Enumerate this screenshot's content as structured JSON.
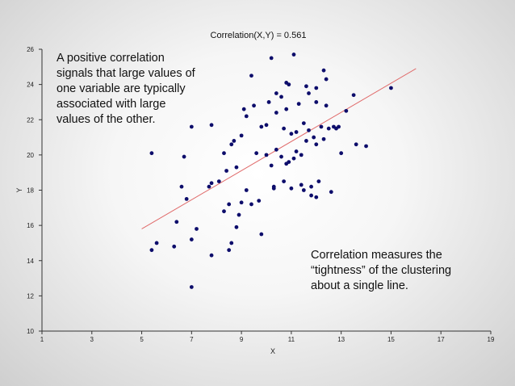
{
  "chart_data": {
    "type": "scatter",
    "title": "Correlation(X,Y) = 0.561",
    "xlabel": "X",
    "ylabel": "Y",
    "xlim": [
      1,
      19
    ],
    "ylim": [
      10,
      26
    ],
    "xticks": [
      "1",
      "3",
      "5",
      "7",
      "9",
      "11",
      "13",
      "15",
      "17",
      "19"
    ],
    "yticks": [
      "10",
      "12",
      "14",
      "16",
      "18",
      "20",
      "22",
      "24",
      "26"
    ],
    "point_color": "#0d0d6b",
    "fit_line_color": "#e06a6a",
    "fit_line": {
      "x": [
        5.0,
        16.0
      ],
      "y": [
        15.8,
        24.9
      ]
    },
    "points": [
      [
        5.4,
        14.6
      ],
      [
        5.6,
        15.0
      ],
      [
        5.4,
        20.1
      ],
      [
        6.3,
        14.8
      ],
      [
        6.4,
        16.2
      ],
      [
        6.6,
        18.2
      ],
      [
        6.7,
        19.9
      ],
      [
        6.8,
        17.5
      ],
      [
        7.0,
        15.2
      ],
      [
        7.0,
        21.6
      ],
      [
        7.2,
        15.8
      ],
      [
        7.0,
        12.5
      ],
      [
        7.7,
        18.2
      ],
      [
        7.8,
        18.4
      ],
      [
        7.8,
        21.7
      ],
      [
        7.8,
        14.3
      ],
      [
        8.1,
        18.5
      ],
      [
        8.3,
        16.8
      ],
      [
        8.3,
        20.1
      ],
      [
        8.4,
        19.1
      ],
      [
        8.5,
        17.2
      ],
      [
        8.5,
        14.6
      ],
      [
        8.6,
        20.6
      ],
      [
        8.6,
        15.0
      ],
      [
        8.7,
        20.8
      ],
      [
        8.8,
        15.9
      ],
      [
        8.8,
        19.3
      ],
      [
        8.9,
        16.6
      ],
      [
        9.0,
        17.3
      ],
      [
        9.0,
        21.1
      ],
      [
        9.1,
        22.6
      ],
      [
        9.2,
        18.0
      ],
      [
        9.4,
        17.2
      ],
      [
        9.4,
        24.5
      ],
      [
        9.5,
        22.8
      ],
      [
        9.6,
        20.1
      ],
      [
        9.7,
        17.4
      ],
      [
        9.8,
        15.5
      ],
      [
        9.8,
        21.6
      ],
      [
        10.0,
        20.0
      ],
      [
        10.0,
        21.7
      ],
      [
        10.1,
        23.0
      ],
      [
        10.2,
        25.5
      ],
      [
        10.2,
        19.4
      ],
      [
        10.3,
        18.2
      ],
      [
        10.4,
        20.3
      ],
      [
        10.4,
        22.4
      ],
      [
        10.4,
        23.5
      ],
      [
        10.6,
        19.9
      ],
      [
        10.6,
        23.3
      ],
      [
        10.7,
        21.5
      ],
      [
        10.7,
        18.5
      ],
      [
        10.8,
        22.6
      ],
      [
        10.8,
        24.1
      ],
      [
        10.9,
        24.0
      ],
      [
        10.9,
        19.6
      ],
      [
        11.0,
        18.1
      ],
      [
        11.0,
        21.2
      ],
      [
        11.1,
        25.7
      ],
      [
        11.1,
        19.8
      ],
      [
        11.2,
        21.3
      ],
      [
        11.2,
        20.2
      ],
      [
        11.3,
        22.9
      ],
      [
        11.4,
        18.3
      ],
      [
        11.5,
        21.8
      ],
      [
        11.5,
        18.0
      ],
      [
        11.6,
        20.8
      ],
      [
        11.6,
        23.9
      ],
      [
        11.7,
        21.4
      ],
      [
        11.7,
        23.5
      ],
      [
        11.8,
        18.2
      ],
      [
        11.8,
        17.7
      ],
      [
        11.9,
        21.0
      ],
      [
        12.0,
        23.8
      ],
      [
        12.0,
        20.6
      ],
      [
        12.0,
        17.6
      ],
      [
        12.0,
        23.0
      ],
      [
        12.1,
        18.5
      ],
      [
        12.2,
        21.6
      ],
      [
        12.3,
        20.9
      ],
      [
        12.3,
        24.8
      ],
      [
        12.4,
        22.8
      ],
      [
        12.4,
        24.3
      ],
      [
        12.5,
        21.5
      ],
      [
        12.6,
        17.9
      ],
      [
        12.7,
        21.6
      ],
      [
        12.9,
        21.6
      ],
      [
        13.0,
        20.1
      ],
      [
        13.2,
        22.5
      ],
      [
        13.5,
        23.4
      ],
      [
        13.6,
        20.6
      ],
      [
        14.0,
        20.5
      ],
      [
        15.0,
        23.8
      ],
      [
        10.3,
        18.1
      ],
      [
        10.8,
        19.5
      ],
      [
        12.8,
        21.5
      ],
      [
        9.2,
        22.2
      ],
      [
        11.4,
        20.0
      ]
    ]
  },
  "notes": {
    "left": "A positive correlation\nsignals that large values of\none variable are typically\nassociated with large\nvalues of the other.",
    "right": "Correlation measures the\n“tightness” of the clustering\nabout a single line."
  }
}
